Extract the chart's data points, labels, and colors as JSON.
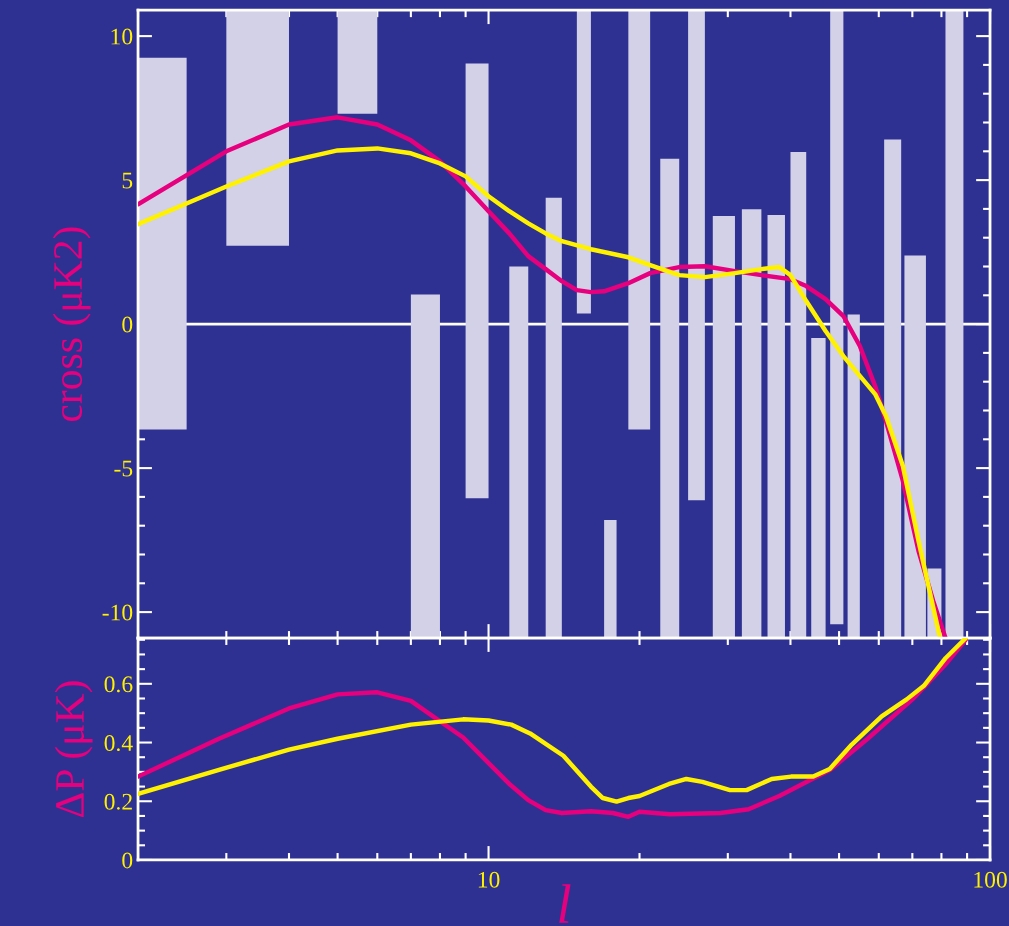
{
  "chart_data": [
    {
      "type": "histogram",
      "ylabel": "cross (μK2)",
      "xlim": [
        2,
        100
      ],
      "log": "x",
      "xticks": [
        10,
        100
      ],
      "ylim": [
        -10.9,
        10.9
      ],
      "yticks": [
        -10,
        -5,
        0,
        5,
        10
      ],
      "tick_labels": "y",
      "grid": false,
      "legend": false,
      "ref_lines": [
        {
          "axis": "y",
          "value": 0,
          "color": "#ffffff"
        }
      ],
      "series": [
        {
          "type": "histogram",
          "color": "#d3d1e8",
          "bins": [
            2,
            2.5,
            3,
            4,
            5,
            6,
            7,
            8,
            9,
            10,
            11,
            12,
            13,
            14,
            15,
            16,
            17,
            18,
            19,
            21,
            22,
            24,
            25,
            27,
            28,
            31,
            32,
            35,
            36,
            39,
            40,
            43,
            44,
            47,
            48,
            51,
            52,
            55,
            61.5,
            66.5,
            67.5,
            74.5,
            75,
            80,
            81.5,
            88.5
          ],
          "values": [
            12.91,
            null,
            8.18,
            null,
            3.6,
            null,
            11.93,
            null,
            15.1,
            null,
            12.9,
            null,
            15.29,
            null,
            10.53,
            null,
            4.1,
            null,
            14.56,
            null,
            16.64,
            null,
            17.02,
            null,
            14.65,
            null,
            14.89,
            null,
            14.69,
            null,
            16.88,
            null,
            10.42,
            null,
            21.32,
            null,
            11.23,
            null,
            17.31,
            null,
            13.28,
            null,
            2.41,
            null,
            21.8
          ],
          "base": [
            -3.66,
            null,
            2.72,
            null,
            7.3,
            null,
            -10.9,
            null,
            -6.05,
            null,
            -10.9,
            null,
            -10.9,
            null,
            0.37,
            null,
            -10.9,
            null,
            -3.66,
            null,
            -10.9,
            null,
            -6.12,
            null,
            -10.9,
            null,
            -10.9,
            null,
            -10.9,
            null,
            -10.9,
            null,
            -10.9,
            null,
            -10.42,
            null,
            -10.9,
            null,
            -10.9,
            null,
            -10.9,
            null,
            -10.9,
            null,
            -10.9
          ]
        },
        {
          "type": "line",
          "color": "#e6007e",
          "x": [
            2,
            3,
            4,
            5,
            6,
            7,
            8,
            9,
            10,
            11,
            12,
            13,
            14,
            15,
            16,
            17,
            18,
            19,
            21,
            24,
            27,
            31,
            35,
            40,
            43,
            47,
            51,
            55,
            59,
            62,
            67,
            72,
            77,
            81.5
          ],
          "values": [
            4.16,
            6.0,
            6.93,
            7.18,
            6.93,
            6.38,
            5.65,
            4.78,
            3.92,
            3.15,
            2.36,
            1.91,
            1.49,
            1.18,
            1.11,
            1.14,
            1.28,
            1.42,
            1.77,
            1.98,
            2.01,
            1.84,
            1.7,
            1.56,
            1.32,
            0.87,
            0.28,
            -0.76,
            -2.15,
            -3.36,
            -5.44,
            -7.87,
            -9.6,
            -10.9
          ]
        },
        {
          "type": "line",
          "color": "#fff200",
          "x": [
            2,
            3,
            4,
            5,
            6,
            7,
            8,
            9,
            10,
            11,
            12,
            13,
            14,
            16,
            19,
            21,
            24,
            27,
            31,
            35,
            38,
            40,
            43,
            47,
            51,
            55,
            59,
            62,
            67,
            72,
            76.5,
            79.5
          ],
          "values": [
            3.47,
            4.78,
            5.65,
            6.03,
            6.1,
            5.93,
            5.58,
            5.13,
            4.44,
            3.92,
            3.5,
            3.15,
            2.88,
            2.6,
            2.32,
            2.05,
            1.7,
            1.63,
            1.77,
            1.91,
            1.98,
            1.7,
            0.8,
            -0.24,
            -1.11,
            -1.8,
            -2.43,
            -3.19,
            -4.92,
            -7.52,
            -9.6,
            -10.9
          ]
        }
      ]
    },
    {
      "type": "line",
      "ylabel": "ΔP (μK)",
      "xlabel": "l",
      "xlim": [
        2,
        100
      ],
      "log": "x",
      "xticks": [
        10,
        100
      ],
      "ylim": [
        0,
        0.756
      ],
      "yticks": [
        0,
        0.2,
        0.4,
        0.6
      ],
      "grid": false,
      "legend": false,
      "series": [
        {
          "color": "#e6007e",
          "x": [
            2,
            2.9,
            4,
            5,
            6,
            7,
            8.9,
            11,
            12,
            13,
            14,
            16,
            17.7,
            19,
            20,
            23,
            29,
            33,
            38,
            48,
            57,
            70,
            82,
            89.4
          ],
          "values": [
            0.284,
            0.413,
            0.516,
            0.564,
            0.571,
            0.542,
            0.417,
            0.259,
            0.204,
            0.17,
            0.16,
            0.166,
            0.16,
            0.147,
            0.164,
            0.156,
            0.16,
            0.173,
            0.218,
            0.307,
            0.413,
            0.547,
            0.671,
            0.75
          ]
        },
        {
          "color": "#fff200",
          "x": [
            2,
            2.9,
            4,
            5,
            7,
            8.9,
            10,
            11.1,
            12.1,
            14.1,
            16,
            16.9,
            18,
            19,
            20,
            22.9,
            24.8,
            26.7,
            30.3,
            32.7,
            36.7,
            40.1,
            44.4,
            47.9,
            53,
            60.8,
            68.2,
            73.8,
            81.6,
            89.5
          ],
          "values": [
            0.225,
            0.307,
            0.376,
            0.413,
            0.461,
            0.479,
            0.475,
            0.461,
            0.431,
            0.355,
            0.25,
            0.211,
            0.199,
            0.211,
            0.218,
            0.259,
            0.276,
            0.266,
            0.238,
            0.238,
            0.276,
            0.284,
            0.284,
            0.31,
            0.393,
            0.489,
            0.547,
            0.593,
            0.688,
            0.756
          ]
        }
      ]
    }
  ]
}
